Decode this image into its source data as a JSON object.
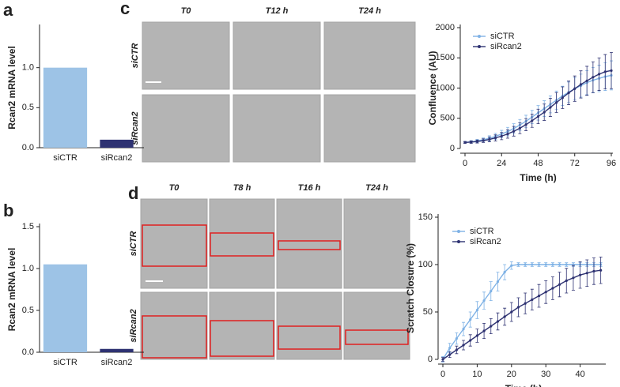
{
  "panel_labels": [
    "a",
    "b",
    "c",
    "d"
  ],
  "panel_c_images": {
    "columns": [
      "T0",
      "T12 h",
      "T24 h"
    ],
    "rows": [
      "siCTR",
      "siRcan2"
    ]
  },
  "panel_d_images": {
    "columns": [
      "T0",
      "T8 h",
      "T16 h",
      "T24 h"
    ],
    "rows": [
      "siCTR",
      "siRcan2"
    ]
  },
  "chart_data": [
    {
      "type": "bar",
      "y_label": "Rcan2 mRNA level",
      "categories": [
        "siCTR",
        "siRcan2"
      ],
      "values": [
        1.0,
        0.1
      ],
      "colors": [
        "#9dc3e6",
        "#2e3272"
      ],
      "ylim": [
        0,
        1.5
      ],
      "yticks": [
        {
          "value": 0,
          "label": "0.0"
        },
        {
          "value": 0.5,
          "label": "0.5"
        },
        {
          "value": 1,
          "label": "1.0"
        }
      ]
    },
    {
      "type": "bar",
      "y_label": "Rcan2 mRNA level",
      "categories": [
        "siCTR",
        "siRcan2"
      ],
      "values": [
        1.05,
        0.04
      ],
      "colors": [
        "#9dc3e6",
        "#2e3272"
      ],
      "ylim": [
        0,
        1.5
      ],
      "yticks": [
        {
          "value": 0,
          "label": "0.0"
        },
        {
          "value": 0.5,
          "label": "0.5"
        },
        {
          "value": 1,
          "label": "1.0"
        },
        {
          "value": 1.5,
          "label": "1.5"
        }
      ]
    },
    {
      "type": "line",
      "x_label": "Time (h)",
      "y_label": "Confluence (AU)",
      "x": [
        0,
        4,
        8,
        12,
        16,
        20,
        24,
        28,
        32,
        36,
        40,
        44,
        48,
        52,
        56,
        60,
        64,
        68,
        72,
        76,
        80,
        84,
        88,
        92,
        96
      ],
      "series": [
        {
          "name": "siCTR",
          "color": "#7fb2e5",
          "values": [
            100,
            110,
            125,
            145,
            170,
            200,
            240,
            280,
            330,
            390,
            450,
            520,
            590,
            660,
            730,
            800,
            870,
            930,
            990,
            1040,
            1090,
            1130,
            1160,
            1190,
            1210
          ],
          "errors": [
            15,
            20,
            25,
            30,
            40,
            50,
            60,
            70,
            80,
            90,
            100,
            110,
            120,
            130,
            140,
            150,
            160,
            170,
            180,
            190,
            200,
            210,
            220,
            230,
            240
          ]
        },
        {
          "name": "siRcan2",
          "color": "#2e3272",
          "values": [
            100,
            105,
            115,
            130,
            150,
            175,
            205,
            240,
            285,
            335,
            395,
            460,
            530,
            600,
            680,
            760,
            840,
            920,
            990,
            1060,
            1120,
            1180,
            1230,
            1270,
            1290
          ],
          "errors": [
            15,
            20,
            25,
            30,
            40,
            50,
            60,
            70,
            80,
            90,
            100,
            110,
            120,
            135,
            150,
            165,
            180,
            195,
            210,
            225,
            240,
            255,
            270,
            285,
            300
          ]
        }
      ],
      "xlim": [
        0,
        96
      ],
      "xticks": [
        0,
        24,
        48,
        72,
        96
      ],
      "ylim": [
        0,
        2000
      ],
      "yticks": [
        0,
        500,
        1000,
        1500,
        2000
      ]
    },
    {
      "type": "line",
      "x_label": "Time (h)",
      "y_label": "Scratch Closure (%)",
      "x": [
        0,
        2,
        4,
        6,
        8,
        10,
        12,
        14,
        16,
        18,
        20,
        22,
        24,
        26,
        28,
        30,
        32,
        34,
        36,
        38,
        40,
        42,
        44,
        46
      ],
      "series": [
        {
          "name": "siCTR",
          "color": "#7fb2e5",
          "values": [
            0,
            12,
            22,
            32,
            42,
            52,
            62,
            72,
            82,
            92,
            99,
            100,
            100,
            100,
            100,
            100,
            100,
            100,
            100,
            100,
            100,
            100,
            100,
            100
          ],
          "errors": [
            3,
            5,
            6,
            7,
            8,
            9,
            9,
            10,
            10,
            8,
            4,
            2,
            2,
            2,
            2,
            2,
            2,
            2,
            2,
            2,
            2,
            2,
            2,
            2
          ]
        },
        {
          "name": "siRcan2",
          "color": "#2e3272",
          "values": [
            0,
            5,
            10,
            15,
            20,
            25,
            30,
            35,
            40,
            45,
            50,
            55,
            59,
            63,
            67,
            71,
            75,
            79,
            83,
            86,
            89,
            91,
            93,
            94
          ],
          "errors": [
            2,
            3,
            4,
            5,
            6,
            7,
            8,
            8,
            9,
            9,
            10,
            10,
            11,
            11,
            12,
            12,
            12,
            13,
            13,
            13,
            14,
            14,
            14,
            14
          ]
        }
      ],
      "xlim": [
        0,
        47
      ],
      "xticks": [
        0,
        10,
        20,
        30,
        40
      ],
      "ylim": [
        0,
        150
      ],
      "yticks": [
        0,
        50,
        100,
        150
      ]
    }
  ]
}
